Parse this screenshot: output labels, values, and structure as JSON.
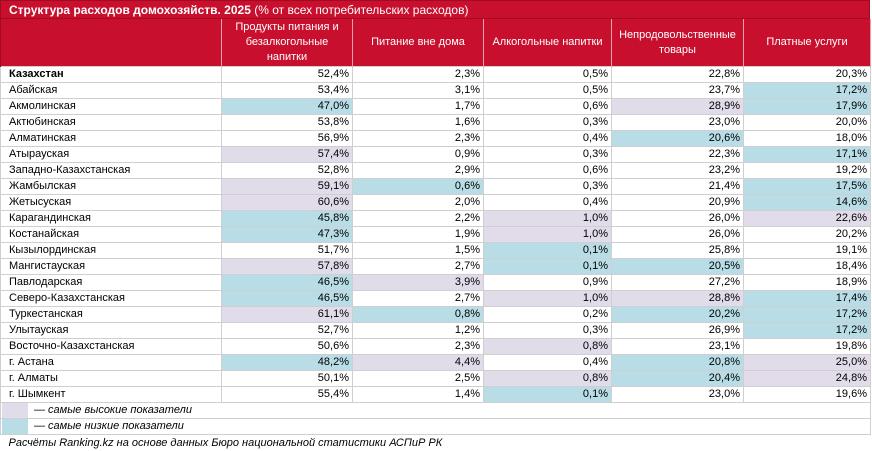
{
  "title": {
    "bold": "Структура расходов домохозяйств. 2025",
    "normal": " (% от всех потребительских расходов)"
  },
  "columns": [
    "",
    "Продукты питания и безалкогольные напитки",
    "Питание вне дома",
    "Алкогольные напитки",
    "Непродовольственные товары",
    "Платные услуги"
  ],
  "rows": [
    {
      "name": "Казахстан",
      "bold": true,
      "values": [
        "52,4%",
        "2,3%",
        "0,5%",
        "22,8%",
        "20,3%"
      ],
      "marks": [
        "",
        "",
        "",
        "",
        ""
      ]
    },
    {
      "name": "Абайская",
      "values": [
        "53,4%",
        "3,1%",
        "0,5%",
        "23,7%",
        "17,2%"
      ],
      "marks": [
        "",
        "",
        "",
        "",
        "lo"
      ]
    },
    {
      "name": "Акмолинская",
      "values": [
        "47,0%",
        "1,7%",
        "0,6%",
        "28,9%",
        "17,9%"
      ],
      "marks": [
        "lo",
        "",
        "",
        "hi",
        "lo"
      ]
    },
    {
      "name": "Актюбинская",
      "values": [
        "53,8%",
        "1,6%",
        "0,3%",
        "23,0%",
        "20,0%"
      ],
      "marks": [
        "",
        "",
        "",
        "",
        ""
      ]
    },
    {
      "name": "Алматинская",
      "values": [
        "56,9%",
        "2,3%",
        "0,4%",
        "20,6%",
        "18,0%"
      ],
      "marks": [
        "",
        "",
        "",
        "lo",
        ""
      ]
    },
    {
      "name": "Атырауская",
      "values": [
        "57,4%",
        "0,9%",
        "0,3%",
        "22,3%",
        "17,1%"
      ],
      "marks": [
        "hi",
        "",
        "",
        "",
        "lo"
      ]
    },
    {
      "name": "Западно-Казахстанская",
      "values": [
        "52,8%",
        "2,9%",
        "0,6%",
        "23,2%",
        "19,2%"
      ],
      "marks": [
        "",
        "",
        "",
        "",
        ""
      ]
    },
    {
      "name": "Жамбылская",
      "values": [
        "59,1%",
        "0,6%",
        "0,3%",
        "21,4%",
        "17,5%"
      ],
      "marks": [
        "hi",
        "lo",
        "",
        "",
        "lo"
      ]
    },
    {
      "name": "Жетысуская",
      "values": [
        "60,6%",
        "2,0%",
        "0,4%",
        "20,9%",
        "14,6%"
      ],
      "marks": [
        "hi",
        "",
        "",
        "",
        "lo"
      ]
    },
    {
      "name": "Карагандинская",
      "values": [
        "45,8%",
        "2,2%",
        "1,0%",
        "26,0%",
        "22,6%"
      ],
      "marks": [
        "lo",
        "",
        "hi",
        "",
        "hi"
      ]
    },
    {
      "name": "Костанайская",
      "values": [
        "47,3%",
        "1,9%",
        "1,0%",
        "26,0%",
        "20,2%"
      ],
      "marks": [
        "lo",
        "",
        "hi",
        "",
        ""
      ]
    },
    {
      "name": "Кызылординская",
      "values": [
        "51,7%",
        "1,5%",
        "0,1%",
        "25,8%",
        "19,1%"
      ],
      "marks": [
        "",
        "",
        "lo",
        "",
        ""
      ]
    },
    {
      "name": "Мангистауская",
      "values": [
        "57,8%",
        "2,7%",
        "0,1%",
        "20,5%",
        "18,4%"
      ],
      "marks": [
        "hi",
        "",
        "lo",
        "lo",
        ""
      ]
    },
    {
      "name": "Павлодарская",
      "values": [
        "46,5%",
        "3,9%",
        "0,9%",
        "27,2%",
        "18,9%"
      ],
      "marks": [
        "lo",
        "hi",
        "",
        "",
        ""
      ]
    },
    {
      "name": "Северо-Казахстанская",
      "values": [
        "46,5%",
        "2,7%",
        "1,0%",
        "28,8%",
        "17,4%"
      ],
      "marks": [
        "lo",
        "",
        "hi",
        "hi",
        "lo"
      ]
    },
    {
      "name": "Туркестанская",
      "values": [
        "61,1%",
        "0,8%",
        "0,2%",
        "20,2%",
        "17,2%"
      ],
      "marks": [
        "hi",
        "lo",
        "",
        "lo",
        "lo"
      ]
    },
    {
      "name": "Улытауская",
      "values": [
        "52,7%",
        "1,2%",
        "0,3%",
        "26,9%",
        "17,2%"
      ],
      "marks": [
        "",
        "",
        "",
        "",
        "lo"
      ]
    },
    {
      "name": "Восточно-Казахстанская",
      "values": [
        "50,6%",
        "2,3%",
        "0,8%",
        "23,1%",
        "19,8%"
      ],
      "marks": [
        "",
        "",
        "hi",
        "",
        ""
      ]
    },
    {
      "name": "г. Астана",
      "values": [
        "48,2%",
        "4,4%",
        "0,4%",
        "20,8%",
        "25,0%"
      ],
      "marks": [
        "lo",
        "hi",
        "",
        "lo",
        "hi"
      ]
    },
    {
      "name": "г. Алматы",
      "values": [
        "50,1%",
        "2,5%",
        "0,8%",
        "20,4%",
        "24,8%"
      ],
      "marks": [
        "",
        "",
        "hi",
        "lo",
        "hi"
      ]
    },
    {
      "name": "г. Шымкент",
      "values": [
        "55,4%",
        "1,4%",
        "0,1%",
        "23,0%",
        "19,6%"
      ],
      "marks": [
        "",
        "",
        "lo",
        "",
        ""
      ]
    }
  ],
  "legend": {
    "high": "— самые высокие показатели",
    "low": "— самые низкие показатели"
  },
  "source": "Расчёты Ranking.kz на основе данных Бюро национальной статистики АСПиР РК",
  "colors": {
    "header_bg": "#c8102e",
    "highest": "#e2dcea",
    "lowest": "#b9dde6"
  }
}
